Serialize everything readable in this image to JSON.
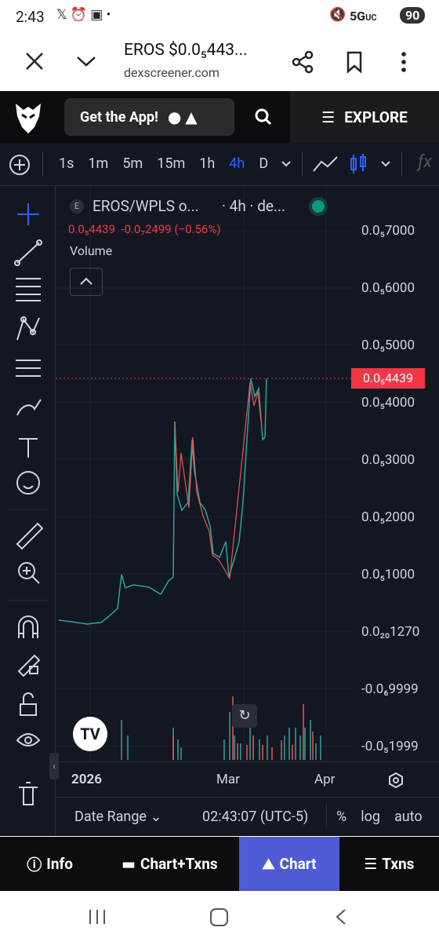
{
  "status_bar": {
    "time": "2:43",
    "network": "5G",
    "network_sub": "UC",
    "battery": "90"
  },
  "browser": {
    "title": "EROS $0.0₅443...",
    "url": "dexscreener.com"
  },
  "app_header": {
    "get_app": "Get the App!",
    "explore": "EXPLORE"
  },
  "toolbar": {
    "intervals": [
      "1s",
      "1m",
      "5m",
      "15m",
      "1h",
      "4h",
      "D"
    ]
  },
  "chart": {
    "symbol": "EROS/WPLS o...",
    "interval": "· 4h · de...",
    "badge": "E",
    "price": "0.0₅4439",
    "change": "-0.0₇2499 (−0.56%)",
    "volume": "Volume",
    "price_axis": [
      "0.0₅7000",
      "0.0₅6000",
      "0.0₅5000",
      "0.0₅4000",
      "0.0₅3000",
      "0.0₅2000",
      "0.0₅1000",
      "0.0₂₀1270",
      "-0.0₆9999",
      "-0.0₅1999"
    ],
    "last_price": "0.0₅4439",
    "time_axis": [
      "2026",
      "Mar",
      "Apr"
    ]
  },
  "footer": {
    "date_range": "Date Range",
    "clock": "02:43:07 (UTC-5)",
    "options": [
      "%",
      "log",
      "auto"
    ]
  },
  "tabs": [
    "Info",
    "Chart+Txns",
    "Chart",
    "Txns"
  ]
}
